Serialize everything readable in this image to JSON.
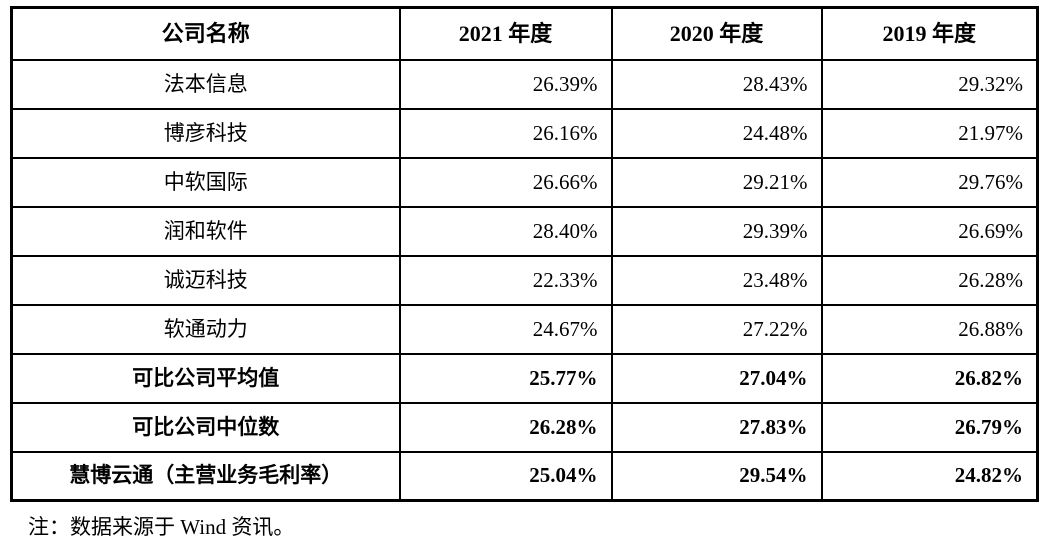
{
  "table": {
    "columns": [
      "公司名称",
      "2021 年度",
      "2020 年度",
      "2019 年度"
    ],
    "rows": [
      {
        "name": "法本信息",
        "values": [
          "26.39%",
          "28.43%",
          "29.32%"
        ]
      },
      {
        "name": "博彦科技",
        "values": [
          "26.16%",
          "24.48%",
          "21.97%"
        ]
      },
      {
        "name": "中软国际",
        "values": [
          "26.66%",
          "29.21%",
          "29.76%"
        ]
      },
      {
        "name": "润和软件",
        "values": [
          "28.40%",
          "29.39%",
          "26.69%"
        ]
      },
      {
        "name": "诚迈科技",
        "values": [
          "22.33%",
          "23.48%",
          "26.28%"
        ]
      },
      {
        "name": "软通动力",
        "values": [
          "24.67%",
          "27.22%",
          "26.88%"
        ]
      },
      {
        "name": "可比公司平均值",
        "values": [
          "25.77%",
          "27.04%",
          "26.82%"
        ]
      },
      {
        "name": "可比公司中位数",
        "values": [
          "26.28%",
          "27.83%",
          "26.79%"
        ]
      },
      {
        "name": "慧博云通（主营业务毛利率）",
        "values": [
          "25.04%",
          "29.54%",
          "24.82%"
        ]
      }
    ]
  },
  "note": "注：数据来源于 Wind 资讯。"
}
